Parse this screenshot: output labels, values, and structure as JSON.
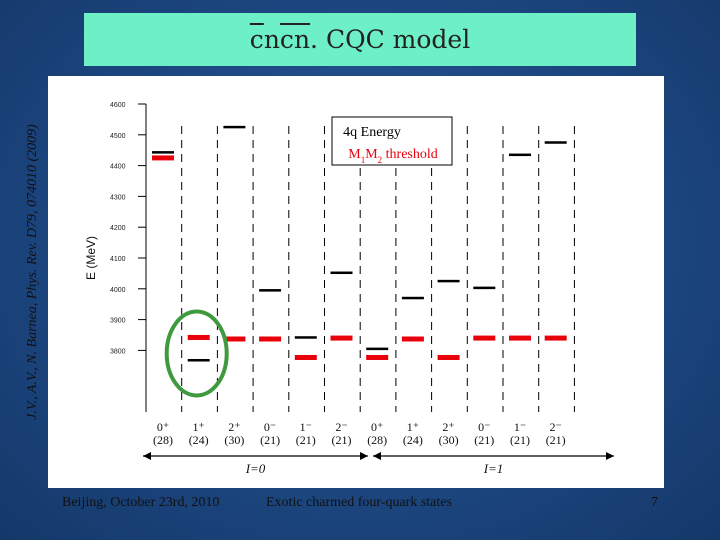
{
  "slide": {
    "title_c1": "c",
    "title_n1": "n",
    "title_c2": "c",
    "title_n2": "n",
    "title_rest": ". CQC model",
    "side_citation": "J.V., A.V., N. Barnea, Phys. Rev. D79, 074010 (2009)",
    "footer_left": "Beijing, October 23rd, 2010",
    "footer_center": "Exotic charmed four-quark states",
    "page_number": "7"
  },
  "chart_data": {
    "type": "level-diagram",
    "ylabel": "E (MeV)",
    "ylim": [
      3600,
      4600
    ],
    "yticks": [
      "4600",
      "4500",
      "4400",
      "4300",
      "4200",
      "4100",
      "4000",
      "3900",
      "3800"
    ],
    "legend": {
      "energy_label": "4q Energy",
      "threshold_label_prefix": "M",
      "threshold_sub1": "1",
      "threshold_mid": "M",
      "threshold_sub2": "2",
      "threshold_suffix": " threshold",
      "energy_color": "#000000",
      "threshold_color": "#e8000b"
    },
    "columns": [
      {
        "jp": "0⁺",
        "count": "(28)",
        "energy": 4443,
        "threshold": 4425
      },
      {
        "jp": "1⁺",
        "count": "(24)",
        "energy": 3768,
        "threshold": 3842
      },
      {
        "jp": "2⁺",
        "count": "(30)",
        "energy": 4525,
        "threshold": 3837
      },
      {
        "jp": "0⁻",
        "count": "(21)",
        "energy": 3995,
        "threshold": 3837
      },
      {
        "jp": "1⁻",
        "count": "(21)",
        "energy": 3842,
        "threshold": 3777
      },
      {
        "jp": "2⁻",
        "count": "(21)",
        "energy": 4052,
        "threshold": 3840
      },
      {
        "jp": "0⁺",
        "count": "(28)",
        "energy": 3805,
        "threshold": 3777
      },
      {
        "jp": "1⁺",
        "count": "(24)",
        "energy": 3970,
        "threshold": 3837
      },
      {
        "jp": "2⁺",
        "count": "(30)",
        "energy": 4025,
        "threshold": 3777
      },
      {
        "jp": "0⁻",
        "count": "(21)",
        "energy": 4003,
        "threshold": 3840
      },
      {
        "jp": "1⁻",
        "count": "(21)",
        "energy": 4435,
        "threshold": 3840
      },
      {
        "jp": "2⁻",
        "count": "(21)",
        "energy": 4475,
        "threshold": 3840
      }
    ],
    "isospin_groups": [
      {
        "label": "I=0",
        "from_column": 0,
        "to_column": 5
      },
      {
        "label": "I=1",
        "from_column": 6,
        "to_column": 11
      }
    ],
    "highlight_column": 1,
    "highlight_color": "#3f9a3f"
  }
}
